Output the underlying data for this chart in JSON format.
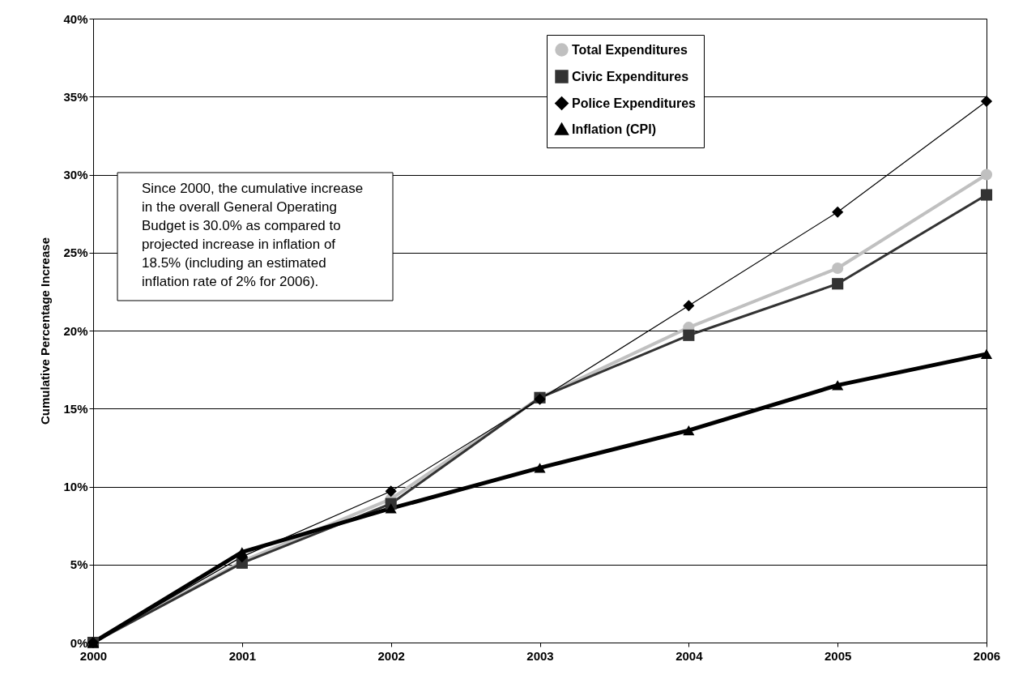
{
  "chart_data": {
    "type": "line",
    "ylabel": "Cumulative Percentage Increase",
    "categories": [
      "2000",
      "2001",
      "2002",
      "2003",
      "2004",
      "2005",
      "2006"
    ],
    "series": [
      {
        "name": "Total Expenditures",
        "color": "#c0c0c0",
        "marker": "circle",
        "values": [
          0,
          5.2,
          9.2,
          15.7,
          20.2,
          24.0,
          30.0
        ]
      },
      {
        "name": "Civic Expenditures",
        "color": "#333333",
        "marker": "square",
        "values": [
          0,
          5.1,
          8.9,
          15.7,
          19.7,
          23.0,
          28.7
        ]
      },
      {
        "name": "Police Expenditures",
        "color": "#000000",
        "marker": "diamond",
        "values": [
          0,
          5.5,
          9.7,
          15.6,
          21.6,
          27.6,
          34.7
        ]
      },
      {
        "name": "Inflation (CPI)",
        "color": "#000000",
        "marker": "triangle",
        "values": [
          0,
          5.8,
          8.6,
          11.2,
          13.6,
          16.5,
          18.5
        ]
      }
    ],
    "ylim": [
      0,
      40
    ],
    "yticks": [
      {
        "value": 0,
        "label": "0%"
      },
      {
        "value": 5,
        "label": "5%"
      },
      {
        "value": 10,
        "label": "10%"
      },
      {
        "value": 15,
        "label": "15%"
      },
      {
        "value": 20,
        "label": "20%"
      },
      {
        "value": 25,
        "label": "25%"
      },
      {
        "value": 30,
        "label": "30%"
      },
      {
        "value": 35,
        "label": "35%"
      },
      {
        "value": 40,
        "label": "40%"
      }
    ],
    "grid": "y",
    "legend": "top right",
    "annotations": [
      "Since 2000, the cumulative increase in the overall General Operating Budget is 30.0% as compared to projected increase in inflation of 18.5% (including an estimated inflation rate of 2% for 2006)."
    ]
  }
}
